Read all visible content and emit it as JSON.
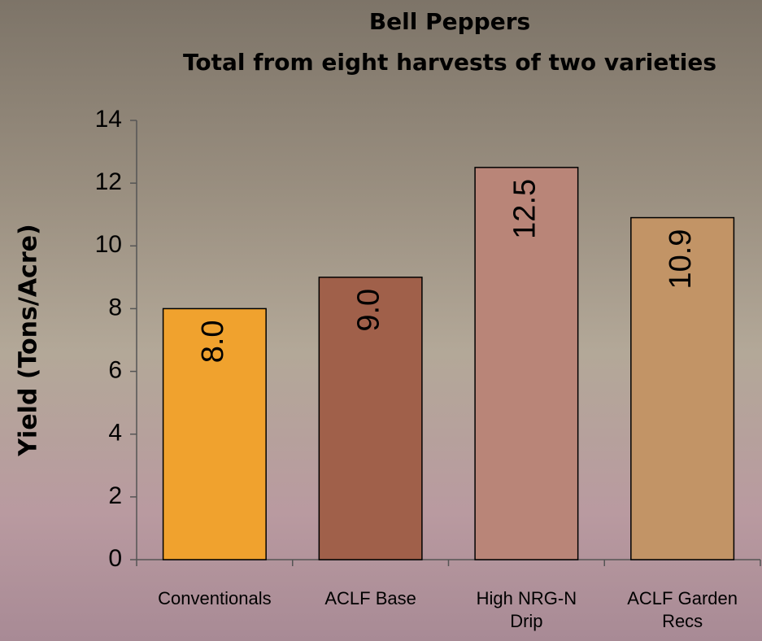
{
  "chart_data": {
    "type": "bar",
    "title": "Bell Peppers",
    "subtitle": "Total from eight harvests of two varieties",
    "y_label": "Yield (Tons/Acre)",
    "categories": [
      "Conventionals",
      "ACLF Base",
      "High NRG-N Drip",
      "ACLF Garden Recs"
    ],
    "values": [
      8.0,
      9.0,
      12.5,
      10.9
    ],
    "value_labels": [
      "8.0",
      "9.0",
      "12.5",
      "10.9"
    ],
    "colors": [
      "#f0a22e",
      "#a0604a",
      "#b98578",
      "#c29466"
    ],
    "ylim": [
      0,
      14
    ],
    "yticks": [
      0,
      2,
      4,
      6,
      8,
      10,
      12,
      14
    ]
  }
}
